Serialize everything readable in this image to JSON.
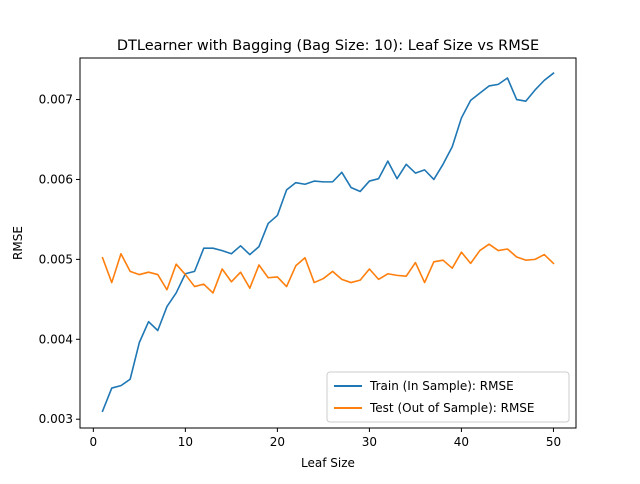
{
  "chart_data": {
    "type": "line",
    "title": "DTLearner with Bagging (Bag Size: 10): Leaf Size vs RMSE",
    "xlabel": "Leaf Size",
    "ylabel": "RMSE",
    "xlim": [
      -1.45,
      52.45
    ],
    "ylim": [
      0.00289,
      0.00752
    ],
    "xticks": [
      0,
      10,
      20,
      30,
      40,
      50
    ],
    "yticks": [
      0.003,
      0.004,
      0.005,
      0.006,
      0.007
    ],
    "xtick_labels": [
      "0",
      "10",
      "20",
      "30",
      "40",
      "50"
    ],
    "ytick_labels": [
      "0.003",
      "0.004",
      "0.005",
      "0.006",
      "0.007"
    ],
    "grid": false,
    "legend_position": "lower-right",
    "x": [
      1,
      2,
      3,
      4,
      5,
      6,
      7,
      8,
      9,
      10,
      11,
      12,
      13,
      14,
      15,
      16,
      17,
      18,
      19,
      20,
      21,
      22,
      23,
      24,
      25,
      26,
      27,
      28,
      29,
      30,
      31,
      32,
      33,
      34,
      35,
      36,
      37,
      38,
      39,
      40,
      41,
      42,
      43,
      44,
      45,
      46,
      47,
      48,
      49,
      50
    ],
    "series": [
      {
        "name": "Train (In Sample): RMSE",
        "color": "#1f77b4",
        "values": [
          0.0031,
          0.00339,
          0.00342,
          0.0035,
          0.00396,
          0.00422,
          0.00411,
          0.00441,
          0.00458,
          0.00482,
          0.00485,
          0.00514,
          0.00514,
          0.00511,
          0.00507,
          0.00517,
          0.00506,
          0.00516,
          0.00545,
          0.00555,
          0.00587,
          0.00596,
          0.00594,
          0.00598,
          0.00597,
          0.00597,
          0.00609,
          0.0059,
          0.00585,
          0.00598,
          0.00601,
          0.00623,
          0.00601,
          0.00619,
          0.00608,
          0.00612,
          0.006,
          0.00619,
          0.00641,
          0.00677,
          0.00699,
          0.00708,
          0.00717,
          0.00719,
          0.00727,
          0.007,
          0.00698,
          0.00712,
          0.00724,
          0.00733
        ]
      },
      {
        "name": "Test (Out of Sample): RMSE",
        "color": "#ff7f0e",
        "values": [
          0.00502,
          0.00471,
          0.00507,
          0.00485,
          0.00481,
          0.00484,
          0.00481,
          0.00462,
          0.00494,
          0.00481,
          0.00466,
          0.00469,
          0.00458,
          0.00488,
          0.00472,
          0.00484,
          0.00464,
          0.00493,
          0.00477,
          0.00478,
          0.00466,
          0.00492,
          0.00502,
          0.00471,
          0.00476,
          0.00485,
          0.00475,
          0.00471,
          0.00474,
          0.00488,
          0.00475,
          0.00482,
          0.0048,
          0.00479,
          0.00496,
          0.00471,
          0.00497,
          0.00499,
          0.00489,
          0.00509,
          0.00495,
          0.00511,
          0.00519,
          0.00511,
          0.00513,
          0.00503,
          0.00499,
          0.005,
          0.00506,
          0.00495
        ]
      }
    ]
  }
}
